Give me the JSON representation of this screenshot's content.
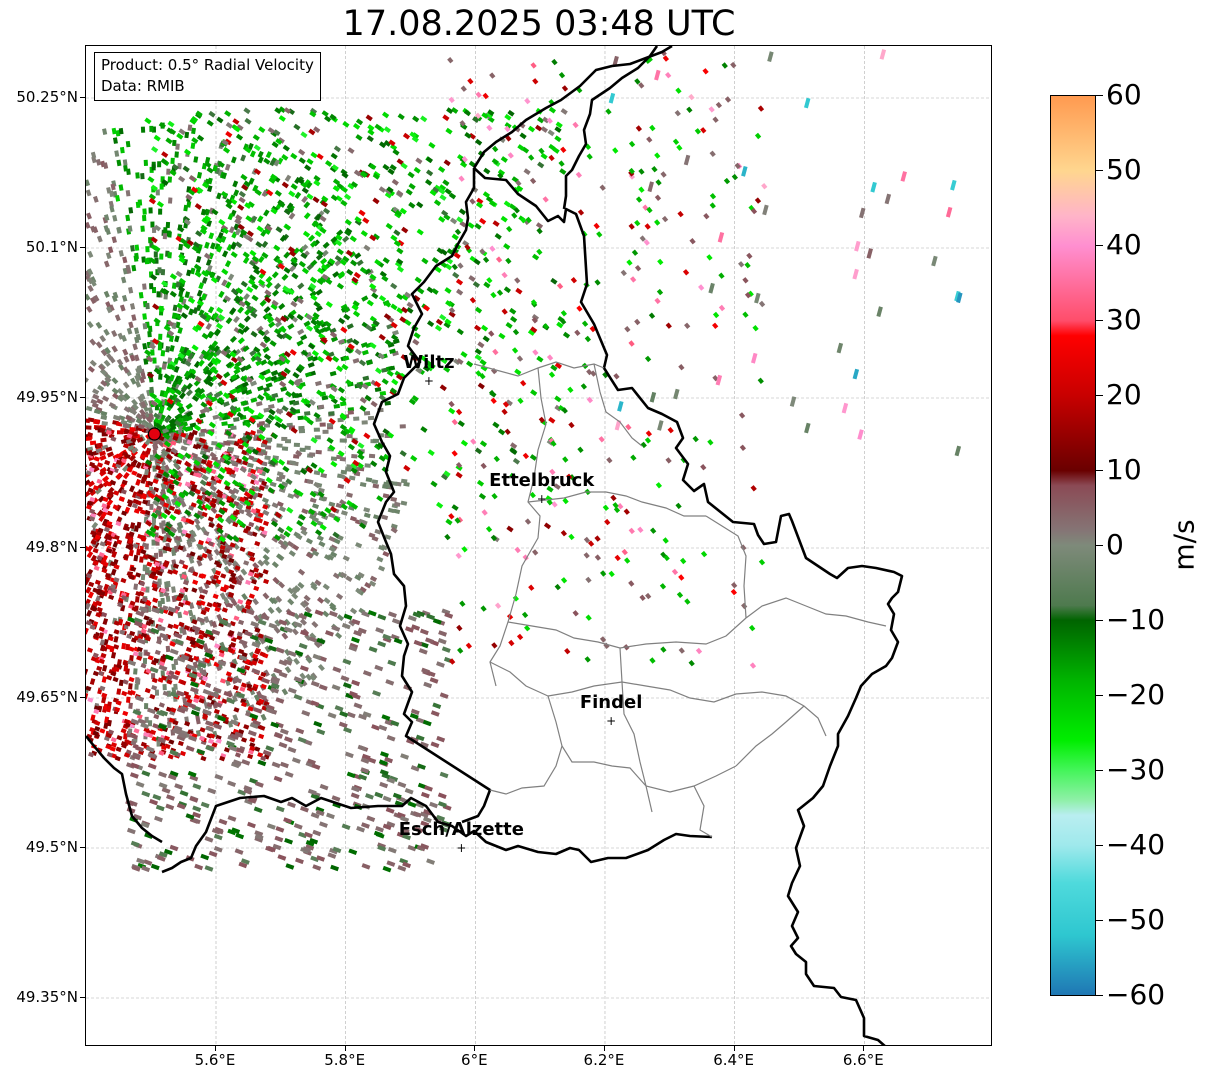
{
  "title": "17.08.2025 03:48 UTC",
  "info_box": {
    "product": "Product: 0.5° Radial Velocity",
    "data": "Data: RMIB"
  },
  "axes": {
    "y_ticks": [
      {
        "value": 50.25,
        "label": "50.25°N"
      },
      {
        "value": 50.1,
        "label": "50.1°N"
      },
      {
        "value": 49.95,
        "label": "49.95°N"
      },
      {
        "value": 49.8,
        "label": "49.8°N"
      },
      {
        "value": 49.65,
        "label": "49.65°N"
      },
      {
        "value": 49.5,
        "label": "49.5°N"
      },
      {
        "value": 49.35,
        "label": "49.35°N"
      }
    ],
    "x_ticks": [
      {
        "value": 5.6,
        "label": "5.6°E"
      },
      {
        "value": 5.8,
        "label": "5.8°E"
      },
      {
        "value": 6.0,
        "label": "6°E"
      },
      {
        "value": 6.2,
        "label": "6.2°E"
      },
      {
        "value": 6.4,
        "label": "6.4°E"
      },
      {
        "value": 6.6,
        "label": "6.6°E"
      }
    ],
    "grid": true
  },
  "cities": [
    {
      "name": "Wiltz",
      "lon": 5.93,
      "lat": 49.966
    },
    {
      "name": "Ettelbruck",
      "lon": 6.104,
      "lat": 49.848
    },
    {
      "name": "Findel",
      "lon": 6.211,
      "lat": 49.626
    },
    {
      "name": "Esch/Alzette",
      "lon": 5.98,
      "lat": 49.499
    }
  ],
  "radar_site": {
    "lon": 5.505,
    "lat": 49.914,
    "color": "#e3000f"
  },
  "colorbar": {
    "label": "m/s",
    "min": -60,
    "max": 60,
    "ticks": [
      {
        "value": 60,
        "label": "60"
      },
      {
        "value": 50,
        "label": "50"
      },
      {
        "value": 40,
        "label": "40"
      },
      {
        "value": 30,
        "label": "30"
      },
      {
        "value": 20,
        "label": "20"
      },
      {
        "value": 10,
        "label": "10"
      },
      {
        "value": 0,
        "label": "0"
      },
      {
        "value": -10,
        "label": "−10"
      },
      {
        "value": -20,
        "label": "−20"
      },
      {
        "value": -30,
        "label": "−30"
      },
      {
        "value": -40,
        "label": "−40"
      },
      {
        "value": -50,
        "label": "−50"
      },
      {
        "value": -60,
        "label": "−60"
      }
    ],
    "stops": [
      {
        "value": -60,
        "color": "#1f77b4"
      },
      {
        "value": -52,
        "color": "#2ec7d0"
      },
      {
        "value": -45,
        "color": "#4fdadc"
      },
      {
        "value": -40,
        "color": "#9fe9ec"
      },
      {
        "value": -36,
        "color": "#b9eef0"
      },
      {
        "value": -34,
        "color": "#8ff0a8"
      },
      {
        "value": -30,
        "color": "#44f55a"
      },
      {
        "value": -26,
        "color": "#00ee00"
      },
      {
        "value": -18,
        "color": "#00b400"
      },
      {
        "value": -10,
        "color": "#006400"
      },
      {
        "value": -8,
        "color": "#4e7a4e"
      },
      {
        "value": 0,
        "color": "#7e8a7a"
      },
      {
        "value": 2,
        "color": "#857575"
      },
      {
        "value": 8,
        "color": "#8b4a55"
      },
      {
        "value": 10,
        "color": "#6a0000"
      },
      {
        "value": 20,
        "color": "#c80000"
      },
      {
        "value": 28,
        "color": "#ff0000"
      },
      {
        "value": 30,
        "color": "#ff4d6a"
      },
      {
        "value": 40,
        "color": "#ff8fd0"
      },
      {
        "value": 44,
        "color": "#ffb4c8"
      },
      {
        "value": 50,
        "color": "#ffd68f"
      },
      {
        "value": 60,
        "color": "#ff9a50"
      }
    ]
  }
}
